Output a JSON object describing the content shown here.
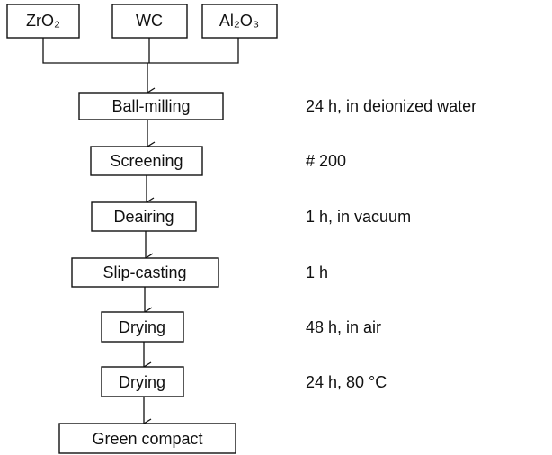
{
  "inputs": [
    "ZrO₂",
    "WC",
    "Al₂O₃"
  ],
  "steps": [
    {
      "label": "Ball-milling",
      "note": "24 h, in deionized water"
    },
    {
      "label": "Screening",
      "note": "# 200"
    },
    {
      "label": "Deairing",
      "note": "1 h, in vacuum"
    },
    {
      "label": "Slip-casting",
      "note": "1 h"
    },
    {
      "label": "Drying",
      "note": "48 h, in air"
    },
    {
      "label": "Drying",
      "note": "24 h, 80 °C"
    },
    {
      "label": "Green compact"
    }
  ]
}
